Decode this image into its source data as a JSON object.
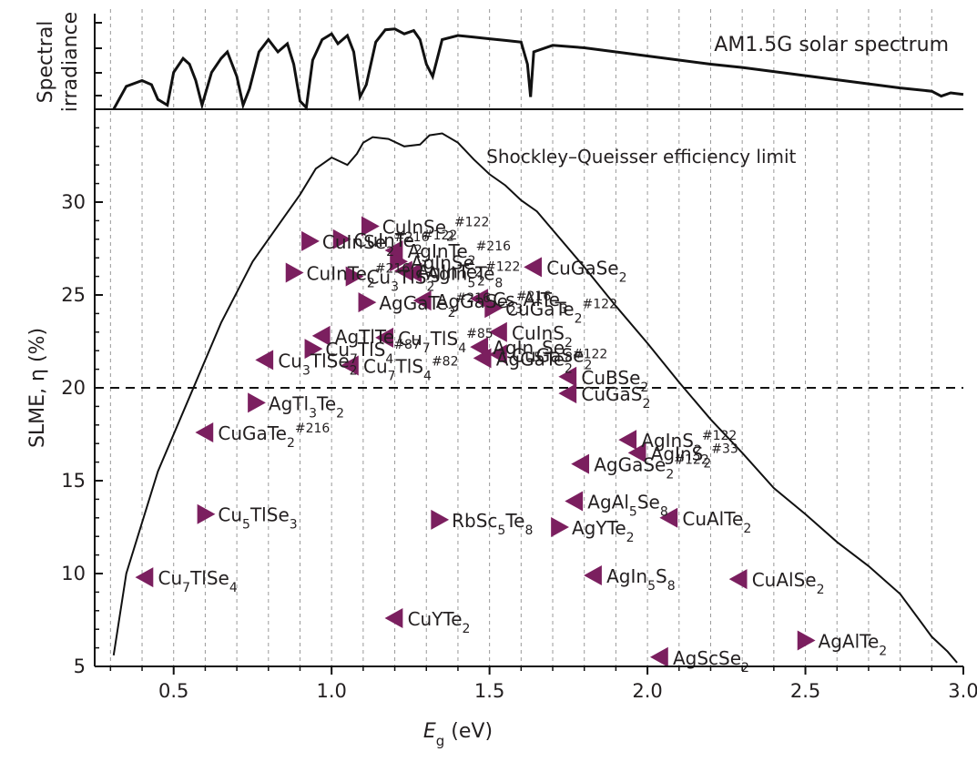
{
  "chart_data": {
    "type": "scatter",
    "xlabel": "E",
    "xlabel_sub": "g",
    "xlabel_unit": " (eV)",
    "ylabel": "SLME, η (%)",
    "xlim": [
      0.25,
      3.0
    ],
    "ylim": [
      5,
      35
    ],
    "xticks": [
      0.5,
      1.0,
      1.5,
      2.0,
      2.5,
      3.0
    ],
    "xtick_labels": [
      "0.5",
      "1.0",
      "1.5",
      "2.0",
      "2.5",
      "3.0"
    ],
    "yticks": [
      5,
      10,
      15,
      20,
      25,
      30
    ],
    "ytick_labels": [
      "5",
      "10",
      "15",
      "20",
      "25",
      "30"
    ],
    "reference_line": {
      "y": 20,
      "style": "dashed"
    },
    "colors": {
      "marker": "#7b1f5f",
      "ink": "#231f20",
      "grid": "#999999"
    },
    "spectrum_panel": {
      "ylabel_line1": "Spectral",
      "ylabel_line2": "irradiance",
      "legend": "AM1.5G solar spectrum",
      "curve": [
        [
          0.31,
          0.0
        ],
        [
          0.35,
          0.28
        ],
        [
          0.4,
          0.35
        ],
        [
          0.43,
          0.3
        ],
        [
          0.45,
          0.12
        ],
        [
          0.48,
          0.05
        ],
        [
          0.5,
          0.45
        ],
        [
          0.53,
          0.62
        ],
        [
          0.55,
          0.55
        ],
        [
          0.57,
          0.35
        ],
        [
          0.59,
          0.05
        ],
        [
          0.62,
          0.45
        ],
        [
          0.65,
          0.62
        ],
        [
          0.67,
          0.7
        ],
        [
          0.7,
          0.4
        ],
        [
          0.72,
          0.05
        ],
        [
          0.74,
          0.25
        ],
        [
          0.77,
          0.7
        ],
        [
          0.8,
          0.85
        ],
        [
          0.83,
          0.7
        ],
        [
          0.86,
          0.8
        ],
        [
          0.88,
          0.55
        ],
        [
          0.9,
          0.1
        ],
        [
          0.92,
          0.02
        ],
        [
          0.94,
          0.6
        ],
        [
          0.97,
          0.85
        ],
        [
          1.0,
          0.92
        ],
        [
          1.02,
          0.8
        ],
        [
          1.05,
          0.9
        ],
        [
          1.07,
          0.7
        ],
        [
          1.09,
          0.15
        ],
        [
          1.11,
          0.3
        ],
        [
          1.14,
          0.82
        ],
        [
          1.17,
          0.97
        ],
        [
          1.2,
          0.98
        ],
        [
          1.23,
          0.92
        ],
        [
          1.26,
          0.96
        ],
        [
          1.28,
          0.85
        ],
        [
          1.3,
          0.55
        ],
        [
          1.32,
          0.4
        ],
        [
          1.35,
          0.85
        ],
        [
          1.4,
          0.9
        ],
        [
          1.45,
          0.88
        ],
        [
          1.5,
          0.86
        ],
        [
          1.55,
          0.84
        ],
        [
          1.6,
          0.82
        ],
        [
          1.62,
          0.55
        ],
        [
          1.63,
          0.15
        ],
        [
          1.64,
          0.7
        ],
        [
          1.7,
          0.78
        ],
        [
          1.8,
          0.75
        ],
        [
          1.9,
          0.7
        ],
        [
          2.0,
          0.65
        ],
        [
          2.1,
          0.6
        ],
        [
          2.2,
          0.55
        ],
        [
          2.3,
          0.51
        ],
        [
          2.4,
          0.46
        ],
        [
          2.5,
          0.41
        ],
        [
          2.6,
          0.36
        ],
        [
          2.7,
          0.31
        ],
        [
          2.8,
          0.26
        ],
        [
          2.9,
          0.22
        ],
        [
          2.93,
          0.16
        ],
        [
          2.96,
          0.2
        ],
        [
          3.0,
          0.18
        ]
      ]
    },
    "sq_limit": {
      "label": "Shockley–Queisser efficiency limit",
      "points": [
        [
          0.31,
          5.6
        ],
        [
          0.35,
          10.0
        ],
        [
          0.45,
          15.5
        ],
        [
          0.55,
          19.5
        ],
        [
          0.65,
          23.5
        ],
        [
          0.75,
          26.8
        ],
        [
          0.85,
          29.2
        ],
        [
          0.9,
          30.4
        ],
        [
          0.95,
          31.8
        ],
        [
          1.0,
          32.4
        ],
        [
          1.05,
          32.0
        ],
        [
          1.08,
          32.6
        ],
        [
          1.1,
          33.2
        ],
        [
          1.13,
          33.5
        ],
        [
          1.18,
          33.4
        ],
        [
          1.23,
          33.0
        ],
        [
          1.28,
          33.1
        ],
        [
          1.31,
          33.6
        ],
        [
          1.35,
          33.7
        ],
        [
          1.4,
          33.2
        ],
        [
          1.45,
          32.3
        ],
        [
          1.5,
          31.5
        ],
        [
          1.55,
          30.9
        ],
        [
          1.6,
          30.1
        ],
        [
          1.65,
          29.5
        ],
        [
          1.7,
          28.5
        ],
        [
          1.8,
          26.5
        ],
        [
          1.9,
          24.4
        ],
        [
          2.0,
          22.4
        ],
        [
          2.1,
          20.3
        ],
        [
          2.2,
          18.3
        ],
        [
          2.3,
          16.5
        ],
        [
          2.4,
          14.6
        ],
        [
          2.5,
          13.2
        ],
        [
          2.6,
          11.7
        ],
        [
          2.7,
          10.4
        ],
        [
          2.8,
          8.9
        ],
        [
          2.9,
          6.6
        ],
        [
          2.95,
          5.8
        ],
        [
          2.98,
          5.2
        ]
      ]
    },
    "points": [
      {
        "x": 0.41,
        "y": 9.8,
        "dir": "left",
        "label": [
          "Cu",
          {
            "sub": "7"
          },
          "TlSe",
          {
            "sub": "4"
          }
        ]
      },
      {
        "x": 0.6,
        "y": 17.6,
        "dir": "left",
        "label": [
          "CuGaTe",
          {
            "sub": "2"
          },
          {
            "sup": "#216"
          }
        ]
      },
      {
        "x": 0.6,
        "y": 13.2,
        "dir": "right",
        "label": [
          "Cu",
          {
            "sub": "5"
          },
          "TlSe",
          {
            "sub": "3"
          }
        ]
      },
      {
        "x": 0.76,
        "y": 19.2,
        "dir": "right",
        "label": [
          "AgTl",
          {
            "sub": "3"
          },
          "Te",
          {
            "sub": "2"
          }
        ]
      },
      {
        "x": 0.79,
        "y": 21.5,
        "dir": "left",
        "label": [
          "Cu",
          {
            "sub": "3"
          },
          "TlSe",
          {
            "sub": "2"
          }
        ]
      },
      {
        "x": 0.88,
        "y": 26.2,
        "dir": "right",
        "label": [
          "CuInTe",
          {
            "sub": "2"
          },
          {
            "sup": "#216"
          }
        ]
      },
      {
        "x": 0.93,
        "y": 27.9,
        "dir": "right",
        "label": [
          "CuInSe",
          {
            "sub": "2"
          },
          {
            "sup": "#216"
          }
        ]
      },
      {
        "x": 0.94,
        "y": 22.1,
        "dir": "right",
        "label": [
          "Cu",
          {
            "sub": "7"
          },
          "TlS",
          {
            "sub": "4"
          },
          {
            "sup": "#87"
          }
        ]
      },
      {
        "x": 0.97,
        "y": 22.8,
        "dir": "left",
        "label": [
          "AgTlTe"
        ]
      },
      {
        "x": 1.03,
        "y": 28.0,
        "dir": "right",
        "label": [
          "CuInTe",
          {
            "sub": "2"
          },
          {
            "sup": "#122"
          }
        ]
      },
      {
        "x": 1.07,
        "y": 26.0,
        "dir": "right",
        "label": [
          "Cu",
          {
            "sub": "3"
          },
          "TlS",
          {
            "sub": "2"
          }
        ]
      },
      {
        "x": 1.11,
        "y": 24.6,
        "dir": "right",
        "label": [
          "AgGaTe",
          {
            "sub": "2"
          },
          {
            "sup": "#216"
          }
        ]
      },
      {
        "x": 1.12,
        "y": 28.7,
        "dir": "right",
        "label": [
          "CuInSe",
          {
            "sub": "2"
          },
          {
            "sup": "#122"
          }
        ]
      },
      {
        "x": 1.06,
        "y": 21.2,
        "dir": "left",
        "label": [
          "Cu",
          {
            "sub": "7"
          },
          "TlS",
          {
            "sub": "4"
          },
          {
            "sup": "#82"
          }
        ]
      },
      {
        "x": 1.17,
        "y": 22.7,
        "dir": "left",
        "label": [
          "Cu",
          {
            "sub": "7"
          },
          "TlS",
          {
            "sub": "4"
          },
          {
            "sup": "#85"
          }
        ]
      },
      {
        "x": 1.2,
        "y": 7.6,
        "dir": "left",
        "label": [
          "CuYTe",
          {
            "sub": "2"
          }
        ]
      },
      {
        "x": 1.2,
        "y": 27.4,
        "dir": "left",
        "label": [
          "AgInTe",
          {
            "sub": "2"
          },
          {
            "sup": "#216"
          }
        ]
      },
      {
        "x": 1.21,
        "y": 26.8,
        "dir": "right",
        "label": [
          "AgInSe",
          {
            "sub": "2"
          }
        ]
      },
      {
        "x": 1.23,
        "y": 26.3,
        "dir": "left",
        "label": [
          "AgInTe",
          {
            "sub": "2"
          },
          {
            "sup": "#122"
          }
        ]
      },
      {
        "x": 1.26,
        "y": 26.2,
        "dir": "left",
        "label": [
          "AgIn",
          {
            "sub": "5"
          },
          "Te",
          {
            "sub": "8"
          }
        ]
      },
      {
        "x": 1.29,
        "y": 24.7,
        "dir": "left",
        "label": [
          "AgGaSe",
          {
            "sub": "2"
          },
          {
            "sup": "#216"
          }
        ]
      },
      {
        "x": 1.34,
        "y": 12.9,
        "dir": "right",
        "label": [
          "RbSc",
          {
            "sub": "5"
          },
          "Te",
          {
            "sub": "8"
          }
        ]
      },
      {
        "x": 1.47,
        "y": 24.8,
        "dir": "left",
        "label": [
          "Cs",
          {
            "sub": "3"
          },
          "AlTe",
          {
            "sub": "3"
          }
        ]
      },
      {
        "x": 1.47,
        "y": 22.2,
        "dir": "left",
        "label": [
          "AgIn",
          {
            "sub": "5"
          },
          "Se",
          {
            "sub": "8"
          }
        ]
      },
      {
        "x": 1.48,
        "y": 21.6,
        "dir": "left",
        "label": [
          "AgGaTe",
          {
            "sub": "2"
          },
          {
            "sup": "#122"
          }
        ]
      },
      {
        "x": 1.51,
        "y": 24.3,
        "dir": "right",
        "label": [
          "CuGaTe",
          {
            "sub": "2"
          },
          {
            "sup": "#122"
          }
        ]
      },
      {
        "x": 1.53,
        "y": 23.0,
        "dir": "left",
        "label": [
          "CuInS",
          {
            "sub": "2"
          }
        ]
      },
      {
        "x": 1.53,
        "y": 21.8,
        "dir": "left",
        "label": [
          "CuGaSe",
          {
            "sub": "2"
          }
        ]
      },
      {
        "x": 1.64,
        "y": 26.5,
        "dir": "left",
        "label": [
          "CuGaSe",
          {
            "sub": "2"
          }
        ]
      },
      {
        "x": 1.72,
        "y": 12.5,
        "dir": "right",
        "label": [
          "AgYTe",
          {
            "sub": "2"
          }
        ]
      },
      {
        "x": 1.75,
        "y": 20.6,
        "dir": "left",
        "label": [
          "CuBSe",
          {
            "sub": "2"
          }
        ]
      },
      {
        "x": 1.75,
        "y": 19.7,
        "dir": "left",
        "label": [
          "CuGaS",
          {
            "sub": "2"
          }
        ]
      },
      {
        "x": 1.77,
        "y": 13.9,
        "dir": "left",
        "label": [
          "AgAl",
          {
            "sub": "5"
          },
          "Se",
          {
            "sub": "8"
          }
        ]
      },
      {
        "x": 1.79,
        "y": 15.9,
        "dir": "left",
        "label": [
          "AgGaSe",
          {
            "sub": "2"
          },
          {
            "sup": "#122"
          }
        ]
      },
      {
        "x": 1.83,
        "y": 9.9,
        "dir": "left",
        "label": [
          "AgIn",
          {
            "sub": "5"
          },
          "S",
          {
            "sub": "8"
          }
        ]
      },
      {
        "x": 1.94,
        "y": 17.2,
        "dir": "left",
        "label": [
          "AgInS",
          {
            "sub": "2"
          },
          {
            "sup": "#122"
          }
        ]
      },
      {
        "x": 1.97,
        "y": 16.5,
        "dir": "left",
        "label": [
          "AgInS",
          {
            "sub": "2"
          },
          {
            "sup": "#33"
          }
        ]
      },
      {
        "x": 2.07,
        "y": 13.0,
        "dir": "left",
        "label": [
          "CuAlTe",
          {
            "sub": "2"
          }
        ]
      },
      {
        "x": 2.04,
        "y": 5.5,
        "dir": "left",
        "label": [
          "AgScSe",
          {
            "sub": "2"
          }
        ]
      },
      {
        "x": 2.29,
        "y": 9.7,
        "dir": "left",
        "label": [
          "CuAlSe",
          {
            "sub": "2"
          }
        ]
      },
      {
        "x": 2.5,
        "y": 6.4,
        "dir": "right",
        "label": [
          "AgAlTe",
          {
            "sub": "2"
          }
        ]
      }
    ]
  }
}
